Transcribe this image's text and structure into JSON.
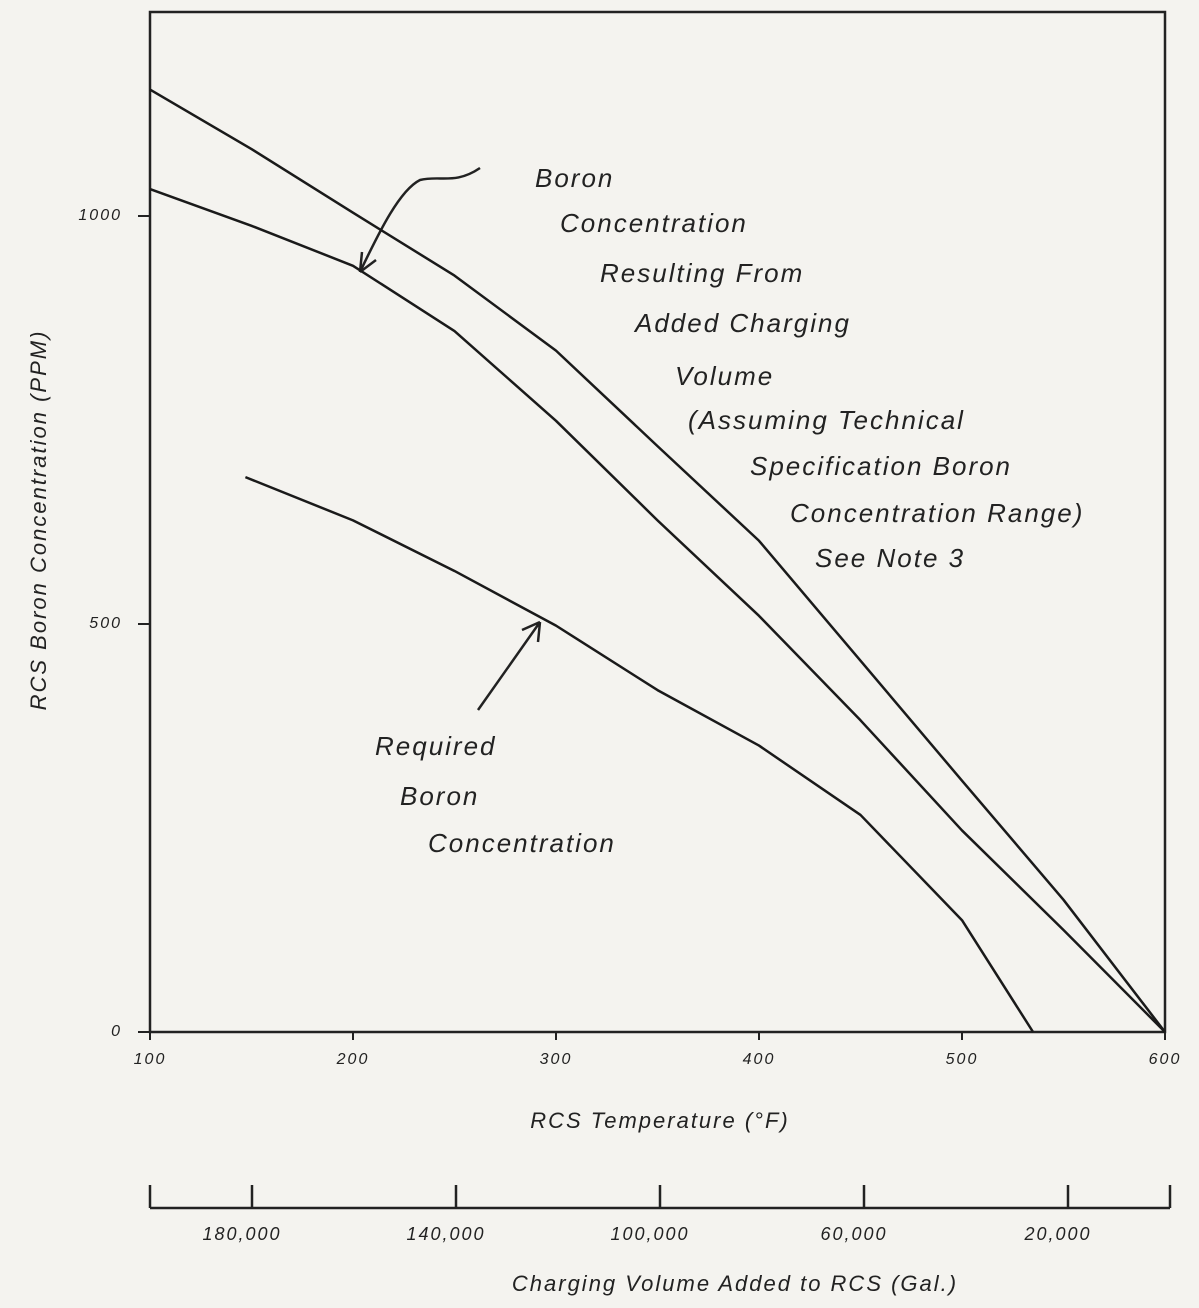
{
  "chart_data": {
    "type": "line",
    "y_label": "RCS Boron Concentration (PPM)",
    "x_label": "RCS Temperature (°F)",
    "x2_label": "Charging Volume Added to RCS (Gal.)",
    "xlim": [
      100,
      600
    ],
    "xticks": [
      100,
      200,
      300,
      400,
      500,
      600
    ],
    "ylim": [
      0,
      1250
    ],
    "yticks": [
      0,
      500,
      1000
    ],
    "x2lim": [
      200000,
      0
    ],
    "x2ticks": [
      {
        "value": 180000,
        "label": "180,000"
      },
      {
        "value": 140000,
        "label": "140,000"
      },
      {
        "value": 100000,
        "label": "100,000"
      },
      {
        "value": 60000,
        "label": "60,000"
      },
      {
        "value": 20000,
        "label": "20,000"
      }
    ],
    "series": [
      {
        "color": "#1a1a1a",
        "x": [
          100,
          150,
          200,
          250,
          300,
          350,
          400,
          450,
          500,
          550,
          600
        ],
        "values": [
          1155,
          1082,
          1004,
          927,
          835,
          718,
          602,
          455,
          308,
          162,
          0
        ]
      },
      {
        "color": "#1a1a1a",
        "x": [
          100,
          150,
          200,
          250,
          300,
          350,
          400,
          450,
          500,
          550,
          600
        ],
        "values": [
          1033,
          988,
          939,
          859,
          749,
          627,
          510,
          382,
          247,
          125,
          0
        ]
      },
      {
        "color": "#1a1a1a",
        "x": [
          147,
          200,
          250,
          300,
          350,
          400,
          450,
          500,
          535
        ],
        "values": [
          680,
          627,
          565,
          498,
          419,
          351,
          266,
          137,
          0
        ]
      }
    ],
    "annotations": [
      {
        "lines": [
          "Boron",
          "Concentration",
          "Resulting From",
          "Added Charging",
          "Volume",
          "(Assuming Technical",
          "Specification Boron",
          "Concentration Range)",
          "See Note 3"
        ]
      },
      {
        "lines": [
          "Required",
          "Boron",
          "Concentration"
        ]
      }
    ]
  }
}
